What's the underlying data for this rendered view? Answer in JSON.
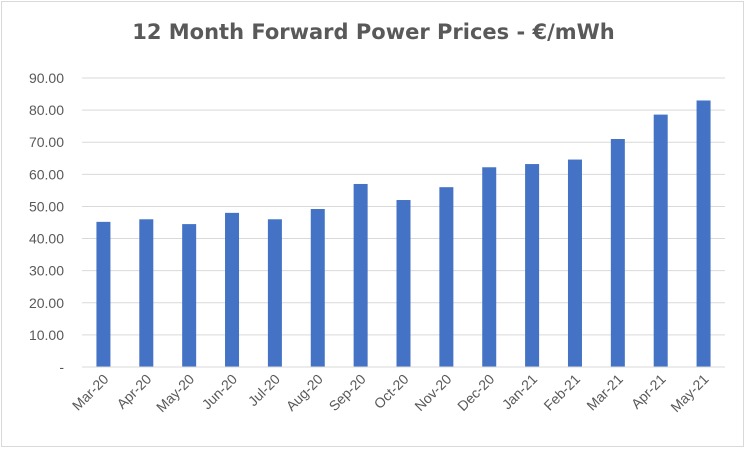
{
  "chart_data": {
    "type": "bar",
    "title": "12 Month Forward Power Prices - €/mWh",
    "xlabel": "",
    "ylabel": "",
    "categories": [
      "Mar-20",
      "Apr-20",
      "May-20",
      "Jun-20",
      "Jul-20",
      "Aug-20",
      "Sep-20",
      "Oct-20",
      "Nov-20",
      "Dec-20",
      "Jan-21",
      "Feb-21",
      "Mar-21",
      "Apr-21",
      "May-21"
    ],
    "values": [
      45.2,
      46.0,
      44.5,
      48.0,
      46.0,
      49.2,
      57.0,
      52.0,
      56.0,
      62.2,
      63.2,
      64.6,
      71.0,
      78.6,
      83.0
    ],
    "ylim": [
      0,
      90
    ],
    "yticks": [
      "-",
      "10.00",
      "20.00",
      "30.00",
      "40.00",
      "50.00",
      "60.00",
      "70.00",
      "80.00",
      "90.00"
    ],
    "grid": true,
    "legend": "none",
    "bar_color": "#4472c4",
    "grid_color": "#d9d9d9"
  }
}
